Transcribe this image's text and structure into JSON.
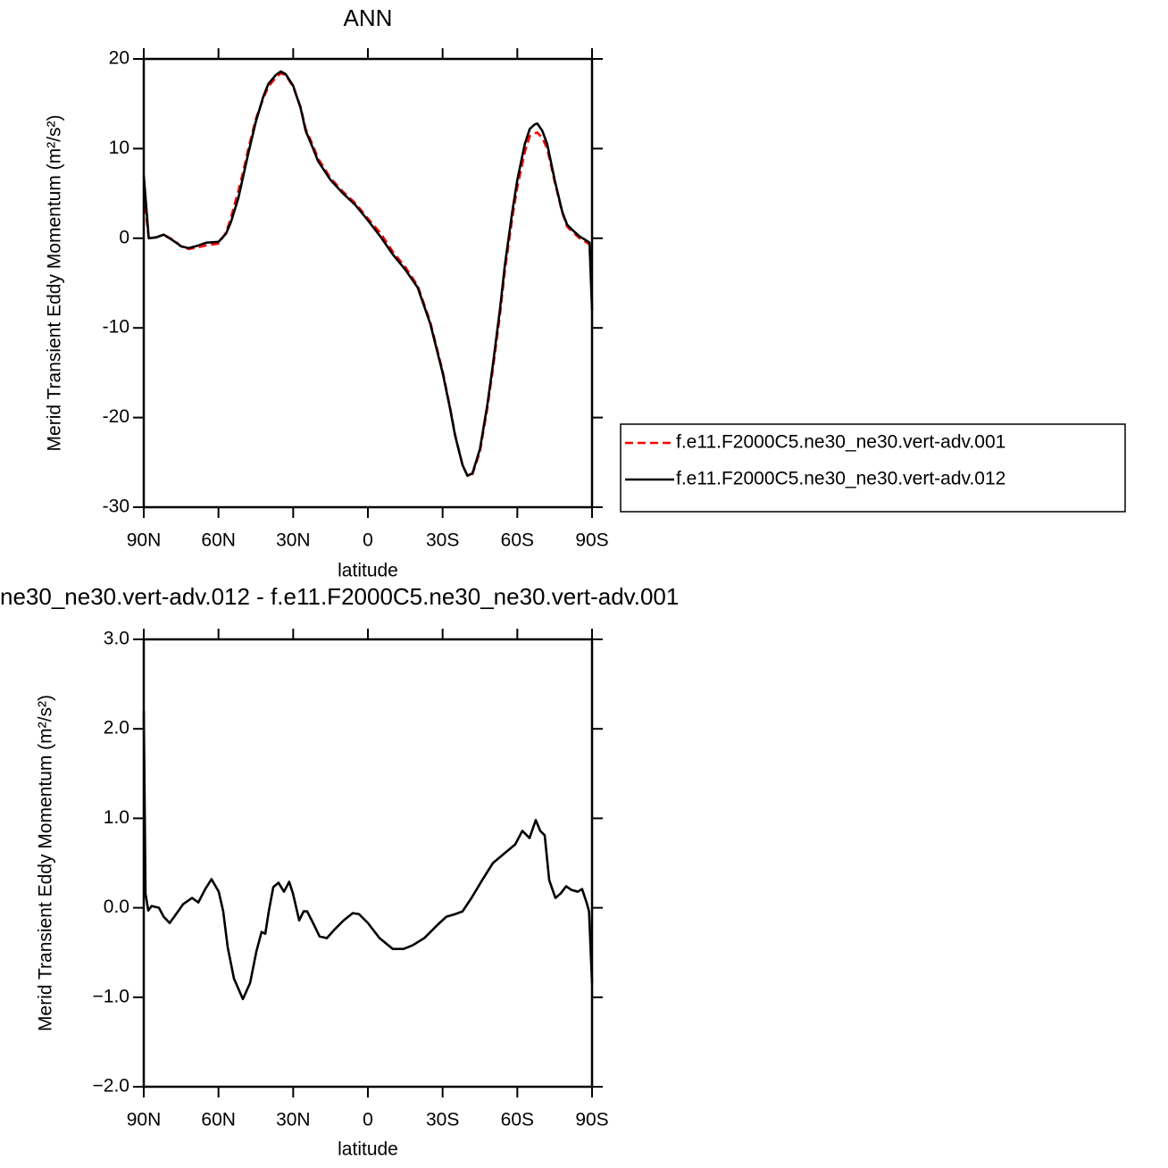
{
  "chart_data": [
    {
      "type": "line",
      "title": "ANN",
      "x_label": "latitude",
      "y_label": "Merid Transient Eddy Momentum (m²/s²)",
      "x": [
        90,
        88,
        85,
        82,
        78,
        75,
        72,
        68,
        65,
        60,
        57,
        55,
        52,
        50,
        48,
        45,
        42,
        40,
        37,
        35,
        33,
        30,
        27,
        25,
        22,
        20,
        15,
        10,
        5,
        0,
        -5,
        -10,
        -15,
        -20,
        -25,
        -30,
        -33,
        -35,
        -38,
        -40,
        -42,
        -45,
        -48,
        -50,
        -53,
        -55,
        -58,
        -60,
        -63,
        -65,
        -67,
        -68,
        -70,
        -72,
        -75,
        -78,
        -80,
        -83,
        -85,
        -88,
        -89,
        -90
      ],
      "series": [
        {
          "name": "f.e11.F2000C5.ne30_ne30.vert-adv.001",
          "color": "#ff0000",
          "dash": true,
          "values": [
            5,
            0,
            0.1,
            0.4,
            -0.2,
            -0.9,
            -1.2,
            -1.0,
            -0.8,
            -0.6,
            0.6,
            2.3,
            5.3,
            7.5,
            10,
            13.3,
            15.6,
            16.9,
            17.9,
            18.4,
            18.2,
            16.9,
            14.6,
            12.2,
            10.3,
            8.9,
            6.7,
            5.2,
            3.9,
            2.2,
            0.6,
            -1.5,
            -3.2,
            -5.3,
            -9.3,
            -14.8,
            -18.9,
            -21.9,
            -25.3,
            -26.5,
            -26.3,
            -23.8,
            -18.9,
            -15,
            -8.6,
            -3.6,
            2.3,
            5.7,
            9.6,
            11.4,
            11.7,
            11.8,
            11.2,
            10.0,
            6.3,
            2.9,
            1.3,
            0.5,
            0,
            -0.5,
            -0.7,
            -7.5
          ]
        },
        {
          "name": "f.e11.F2000C5.ne30_ne30.vert-adv.012",
          "color": "#000000",
          "dash": false,
          "values": [
            7,
            0,
            0.1,
            0.4,
            -0.3,
            -0.9,
            -1.1,
            -0.8,
            -0.5,
            -0.4,
            0.5,
            1.8,
            4.5,
            7,
            9.5,
            13,
            15.8,
            17.2,
            18.2,
            18.6,
            18.3,
            17,
            14.5,
            12,
            10,
            8.6,
            6.5,
            5,
            3.7,
            2,
            0.2,
            -1.8,
            -3.5,
            -5.5,
            -9.5,
            -15,
            -19,
            -22,
            -25.3,
            -26.5,
            -26.2,
            -23.5,
            -18.5,
            -14.5,
            -8,
            -3,
            3,
            6.5,
            10.5,
            12.2,
            12.7,
            12.8,
            12,
            10.5,
            6.5,
            3,
            1.5,
            0.7,
            0.2,
            -0.3,
            -0.5,
            -8
          ]
        }
      ],
      "xlim": [
        90,
        -90
      ],
      "xticks": [
        {
          "value": 90,
          "label": "90N"
        },
        {
          "value": 60,
          "label": "60N"
        },
        {
          "value": 30,
          "label": "30N"
        },
        0,
        {
          "value": -30,
          "label": "30S"
        },
        {
          "value": -60,
          "label": "60S"
        },
        {
          "value": -90,
          "label": "90S"
        }
      ],
      "ylim": [
        -30,
        20
      ],
      "yticks": [
        -30,
        -20,
        -10,
        0,
        10,
        20
      ],
      "legend": "right"
    },
    {
      "type": "line",
      "title": "ne30_ne30.vert-adv.012 - f.e11.F2000C5.ne30_ne30.vert-adv.001",
      "x_label": "latitude",
      "y_label": "Merid Transient Eddy Momentum (m²/s²)",
      "x": [
        90,
        89.3,
        88.2,
        86.8,
        83.9,
        82,
        79.6,
        77.5,
        74.2,
        70.6,
        68.1,
        65.3,
        62.8,
        59.9,
        58.1,
        56.3,
        53.8,
        50.2,
        47.3,
        44.8,
        42.7,
        41.2,
        39.8,
        38,
        35.9,
        33.7,
        31.6,
        30.1,
        27.6,
        25.8,
        24.4,
        22.2,
        19.4,
        16.5,
        13.3,
        9.7,
        6.1,
        3.6,
        0,
        -4.7,
        -10,
        -14.3,
        -17.9,
        -22.6,
        -28,
        -31.5,
        -35.1,
        -38,
        -41.6,
        -45.9,
        -50.2,
        -54.9,
        -59.2,
        -62,
        -64.9,
        -67.4,
        -69.2,
        -71,
        -72.8,
        -75.3,
        -77.4,
        -79.6,
        -81.7,
        -84.3,
        -86,
        -87.8,
        -88.8,
        -90
      ],
      "series": [
        {
          "color": "#000000",
          "dash": false,
          "values": [
            2.2,
            0.16,
            -0.03,
            0.02,
            0,
            -0.1,
            -0.17,
            -0.09,
            0.04,
            0.11,
            0.06,
            0.21,
            0.32,
            0.18,
            -0.04,
            -0.44,
            -0.79,
            -1.02,
            -0.84,
            -0.49,
            -0.27,
            -0.29,
            -0.04,
            0.23,
            0.28,
            0.18,
            0.29,
            0.16,
            -0.14,
            -0.04,
            -0.04,
            -0.16,
            -0.32,
            -0.34,
            -0.24,
            -0.14,
            -0.06,
            -0.07,
            -0.17,
            -0.34,
            -0.46,
            -0.46,
            -0.42,
            -0.34,
            -0.19,
            -0.1,
            -0.07,
            -0.04,
            0.11,
            0.31,
            0.5,
            0.61,
            0.71,
            0.86,
            0.78,
            0.98,
            0.86,
            0.81,
            0.31,
            0.11,
            0.16,
            0.24,
            0.2,
            0.18,
            0.21,
            0.06,
            -0.04,
            -0.84
          ]
        }
      ],
      "xlim": [
        90,
        -90
      ],
      "xticks": [
        {
          "value": 90,
          "label": "90N"
        },
        {
          "value": 60,
          "label": "60N"
        },
        {
          "value": 30,
          "label": "30N"
        },
        0,
        {
          "value": -30,
          "label": "30S"
        },
        {
          "value": -60,
          "label": "60S"
        },
        {
          "value": -90,
          "label": "90S"
        }
      ],
      "ylim": [
        -2,
        3
      ],
      "yticks": [
        {
          "value": -2,
          "label": "−2.0"
        },
        {
          "value": -1,
          "label": "−1.0"
        },
        {
          "value": 0,
          "label": "0.0"
        },
        {
          "value": 1,
          "label": "1.0"
        },
        {
          "value": 2,
          "label": "2.0"
        },
        {
          "value": 3,
          "label": "3.0"
        }
      ]
    }
  ]
}
